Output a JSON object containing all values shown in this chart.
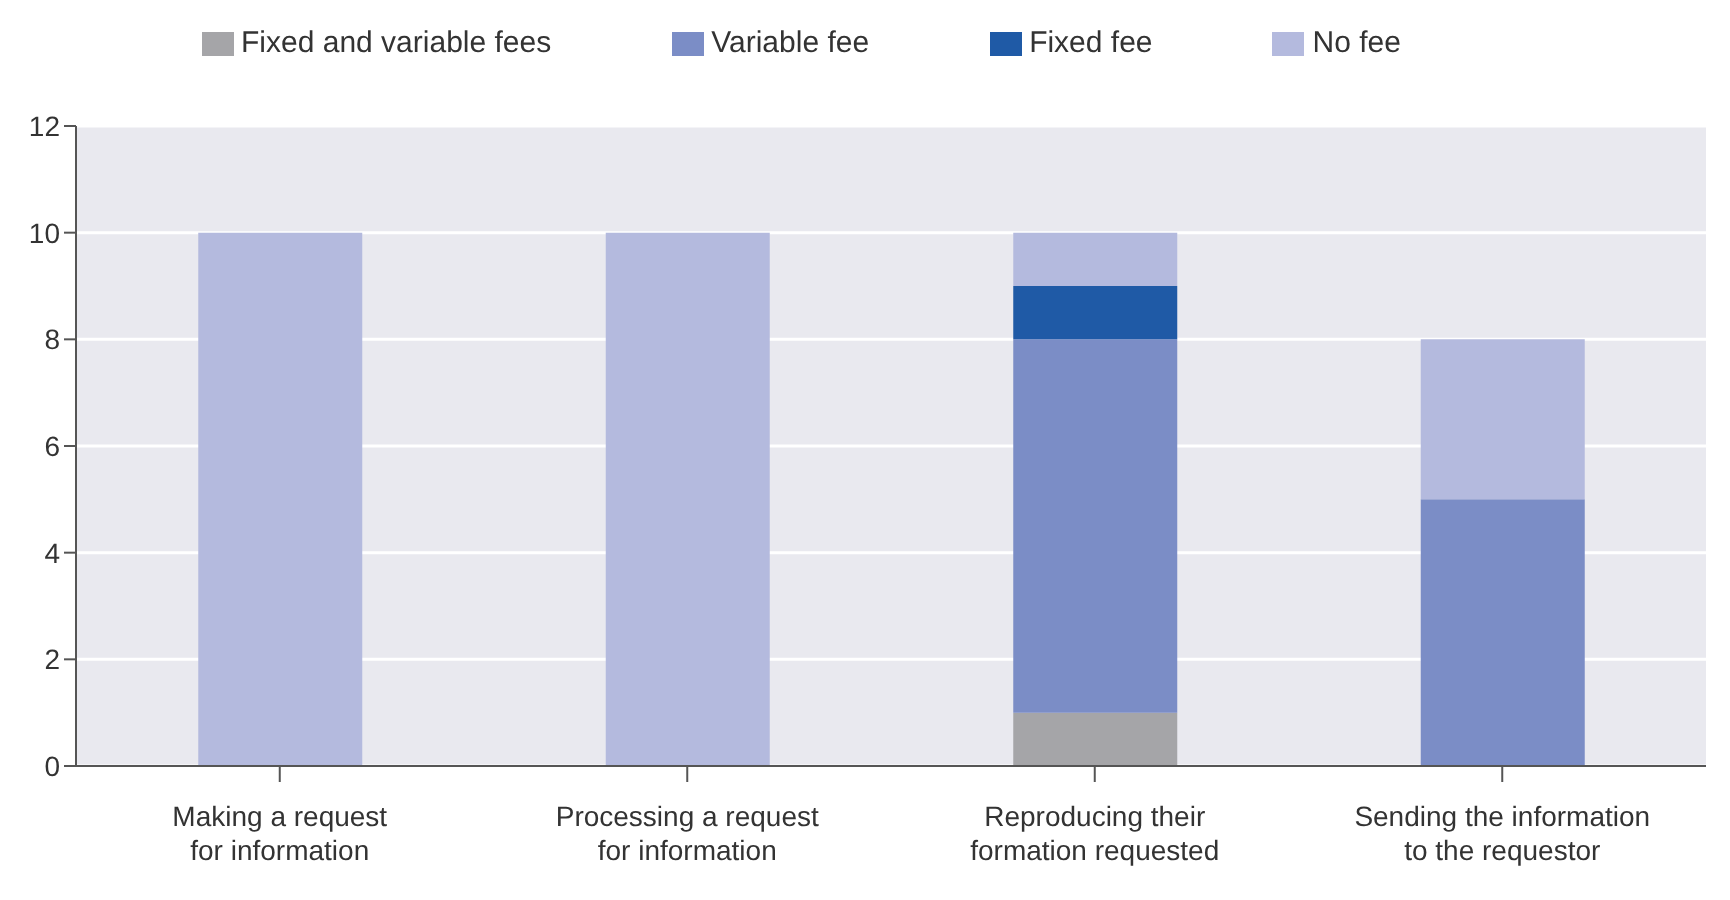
{
  "chart_data": {
    "type": "bar",
    "stacked": true,
    "categories": [
      "Making a request for information",
      "Processing a request for information",
      "Reproducing their formation requested",
      "Sending the information to the requestor"
    ],
    "series": [
      {
        "name": "Fixed and variable fees",
        "color": "#a5a5a8",
        "values": [
          0,
          0,
          1,
          0
        ]
      },
      {
        "name": "Variable fee",
        "color": "#7b8dc6",
        "values": [
          0,
          0,
          7,
          5
        ]
      },
      {
        "name": "Fixed fee",
        "color": "#1f5aa6",
        "values": [
          0,
          0,
          1,
          0
        ]
      },
      {
        "name": "No fee",
        "color": "#b4bade",
        "values": [
          10,
          10,
          1,
          3
        ]
      }
    ],
    "ylim": [
      0,
      12
    ],
    "yticks": [
      0,
      2,
      4,
      6,
      8,
      10,
      12
    ],
    "grid": "y",
    "legend": "top"
  }
}
